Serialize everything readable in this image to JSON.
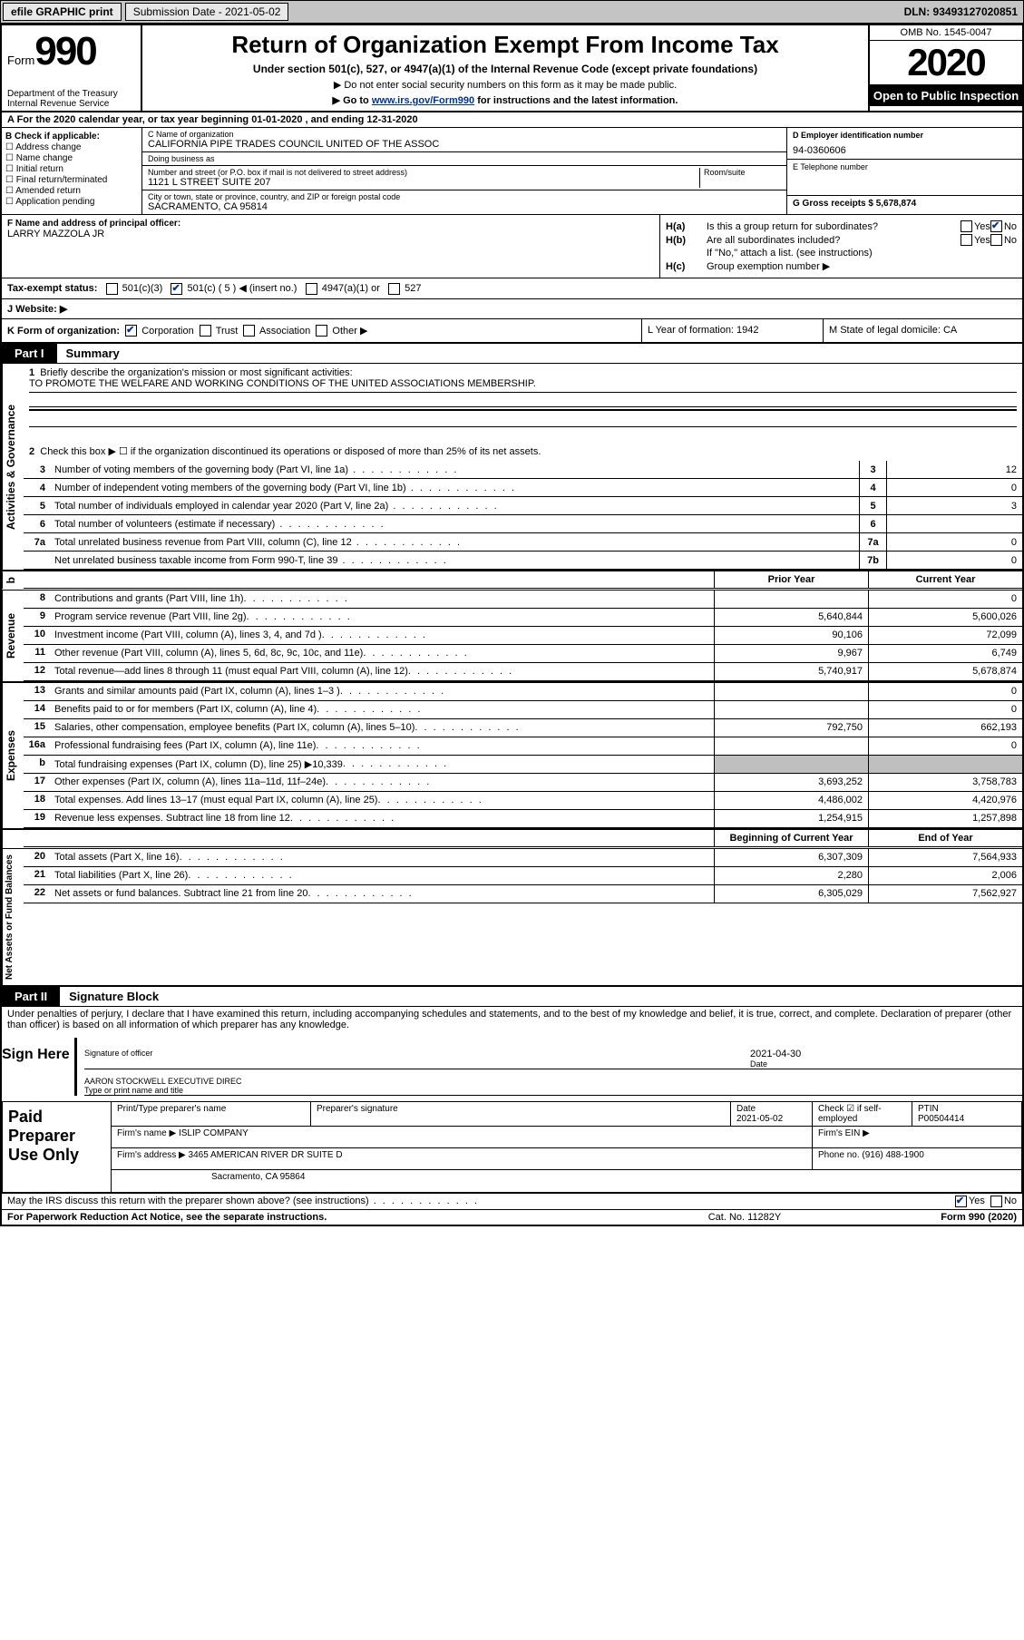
{
  "top_bar": {
    "efile_label": "efile GRAPHIC print",
    "submission_label": "Submission Date - 2021-05-02",
    "dln": "DLN: 93493127020851"
  },
  "header": {
    "form_label": "Form",
    "form_number": "990",
    "dept": "Department of the Treasury",
    "irs": "Internal Revenue Service",
    "title": "Return of Organization Exempt From Income Tax",
    "subtitle": "Under section 501(c), 527, or 4947(a)(1) of the Internal Revenue Code (except private foundations)",
    "note1": "▶ Do not enter social security numbers on this form as it may be made public.",
    "note2_pre": "▶ Go to ",
    "note2_link": "www.irs.gov/Form990",
    "note2_post": " for instructions and the latest information.",
    "omb": "OMB No. 1545-0047",
    "year": "2020",
    "open_pub": "Open to Public Inspection"
  },
  "row_a": "A For the 2020 calendar year, or tax year beginning 01-01-2020    , and ending 12-31-2020",
  "col_b": {
    "title": "B Check if applicable:",
    "opts": [
      "Address change",
      "Name change",
      "Initial return",
      "Final return/terminated",
      "Amended return",
      "Application pending"
    ]
  },
  "col_c": {
    "name_lbl": "C Name of organization",
    "name": "CALIFORNIA PIPE TRADES COUNCIL UNITED OF THE ASSOC",
    "dba_lbl": "Doing business as",
    "dba": "",
    "street_lbl": "Number and street (or P.O. box if mail is not delivered to street address)",
    "street": "1121 L STREET SUITE 207",
    "room_lbl": "Room/suite",
    "city_lbl": "City or town, state or province, country, and ZIP or foreign postal code",
    "city": "SACRAMENTO, CA  95814"
  },
  "col_d": {
    "ein_lbl": "D Employer identification number",
    "ein": "94-0360606",
    "tel_lbl": "E Telephone number",
    "tel": "",
    "gross_lbl": "G Gross receipts $ 5,678,874"
  },
  "officer": {
    "lbl": "F  Name and address of principal officer:",
    "name": "LARRY MAZZOLA JR"
  },
  "h_section": {
    "ha": "Is this a group return for subordinates?",
    "hb": "Are all subordinates included?",
    "hb_note": "If \"No,\" attach a list. (see instructions)",
    "hc": "Group exemption number ▶"
  },
  "row_i": {
    "tax_status": "Tax-exempt status:",
    "opts": [
      "501(c)(3)",
      "501(c) ( 5 ) ◀ (insert no.)",
      "4947(a)(1) or",
      "527"
    ],
    "website_lbl": "J   Website: ▶"
  },
  "row_k": {
    "k": "K Form of organization:",
    "opts": [
      "Corporation",
      "Trust",
      "Association",
      "Other ▶"
    ],
    "l": "L Year of formation: 1942",
    "m": "M State of legal domicile: CA"
  },
  "part1": {
    "tab": "Part I",
    "title": "Summary"
  },
  "governance": {
    "vlabel": "Activities & Governance",
    "l1": "Briefly describe the organization's mission or most significant activities:",
    "l1_val": "TO PROMOTE THE WELFARE AND WORKING CONDITIONS OF THE UNITED ASSOCIATIONS MEMBERSHIP.",
    "l2": "Check this box ▶ ☐  if the organization discontinued its operations or disposed of more than 25% of its net assets.",
    "lines": [
      {
        "n": "3",
        "d": "Number of voting members of the governing body (Part VI, line 1a)",
        "bn": "3",
        "v": "12"
      },
      {
        "n": "4",
        "d": "Number of independent voting members of the governing body (Part VI, line 1b)",
        "bn": "4",
        "v": "0"
      },
      {
        "n": "5",
        "d": "Total number of individuals employed in calendar year 2020 (Part V, line 2a)",
        "bn": "5",
        "v": "3"
      },
      {
        "n": "6",
        "d": "Total number of volunteers (estimate if necessary)",
        "bn": "6",
        "v": ""
      },
      {
        "n": "7a",
        "d": "Total unrelated business revenue from Part VIII, column (C), line 12",
        "bn": "7a",
        "v": "0"
      },
      {
        "n": "",
        "d": "Net unrelated business taxable income from Form 990-T, line 39",
        "bn": "7b",
        "v": "0"
      }
    ]
  },
  "col_headers": {
    "prior": "Prior Year",
    "current": "Current Year"
  },
  "revenue": {
    "vlabel": "Revenue",
    "lines": [
      {
        "n": "8",
        "d": "Contributions and grants (Part VIII, line 1h)",
        "p": "",
        "c": "0"
      },
      {
        "n": "9",
        "d": "Program service revenue (Part VIII, line 2g)",
        "p": "5,640,844",
        "c": "5,600,026"
      },
      {
        "n": "10",
        "d": "Investment income (Part VIII, column (A), lines 3, 4, and 7d )",
        "p": "90,106",
        "c": "72,099"
      },
      {
        "n": "11",
        "d": "Other revenue (Part VIII, column (A), lines 5, 6d, 8c, 9c, 10c, and 11e)",
        "p": "9,967",
        "c": "6,749"
      },
      {
        "n": "12",
        "d": "Total revenue—add lines 8 through 11 (must equal Part VIII, column (A), line 12)",
        "p": "5,740,917",
        "c": "5,678,874"
      }
    ]
  },
  "expenses": {
    "vlabel": "Expenses",
    "lines": [
      {
        "n": "13",
        "d": "Grants and similar amounts paid (Part IX, column (A), lines 1–3 )",
        "p": "",
        "c": "0"
      },
      {
        "n": "14",
        "d": "Benefits paid to or for members (Part IX, column (A), line 4)",
        "p": "",
        "c": "0"
      },
      {
        "n": "15",
        "d": "Salaries, other compensation, employee benefits (Part IX, column (A), lines 5–10)",
        "p": "792,750",
        "c": "662,193"
      },
      {
        "n": "16a",
        "d": "Professional fundraising fees (Part IX, column (A), line 11e)",
        "p": "",
        "c": "0"
      },
      {
        "n": "b",
        "d": "Total fundraising expenses (Part IX, column (D), line 25) ▶10,339",
        "p": "gray",
        "c": "gray"
      },
      {
        "n": "17",
        "d": "Other expenses (Part IX, column (A), lines 11a–11d, 11f–24e)",
        "p": "3,693,252",
        "c": "3,758,783"
      },
      {
        "n": "18",
        "d": "Total expenses. Add lines 13–17 (must equal Part IX, column (A), line 25)",
        "p": "4,486,002",
        "c": "4,420,976"
      },
      {
        "n": "19",
        "d": "Revenue less expenses. Subtract line 18 from line 12",
        "p": "1,254,915",
        "c": "1,257,898"
      }
    ]
  },
  "net_headers": {
    "begin": "Beginning of Current Year",
    "end": "End of Year"
  },
  "net": {
    "vlabel": "Net Assets or Fund Balances",
    "lines": [
      {
        "n": "20",
        "d": "Total assets (Part X, line 16)",
        "p": "6,307,309",
        "c": "7,564,933"
      },
      {
        "n": "21",
        "d": "Total liabilities (Part X, line 26)",
        "p": "2,280",
        "c": "2,006"
      },
      {
        "n": "22",
        "d": "Net assets or fund balances. Subtract line 21 from line 20",
        "p": "6,305,029",
        "c": "7,562,927"
      }
    ]
  },
  "part2": {
    "tab": "Part II",
    "title": "Signature Block"
  },
  "sig": {
    "declaration": "Under penalties of perjury, I declare that I have examined this return, including accompanying schedules and statements, and to the best of my knowledge and belief, it is true, correct, and complete. Declaration of preparer (other than officer) is based on all information of which preparer has any knowledge.",
    "sign_here": "Sign Here",
    "sig_officer": "Signature of officer",
    "date": "2021-04-30",
    "date_lbl": "Date",
    "name": "AARON STOCKWELL  EXECUTIVE DIREC",
    "name_lbl": "Type or print name and title"
  },
  "preparer": {
    "label": "Paid Preparer Use Only",
    "h1": "Print/Type preparer's name",
    "h2": "Preparer's signature",
    "h3": "Date",
    "h3v": "2021-05-02",
    "h4": "Check ☑ if self-employed",
    "h5": "PTIN",
    "h5v": "P00504414",
    "firm_lbl": "Firm's name    ▶",
    "firm": "ISLIP COMPANY",
    "ein_lbl": "Firm's EIN ▶",
    "addr_lbl": "Firm's address ▶",
    "addr1": "3465 AMERICAN RIVER DR SUITE D",
    "addr2": "Sacramento, CA  95864",
    "phone_lbl": "Phone no. (916) 488-1900"
  },
  "footer": {
    "discuss": "May the IRS discuss this return with the preparer shown above? (see instructions)",
    "paperwork": "For Paperwork Reduction Act Notice, see the separate instructions.",
    "cat": "Cat. No. 11282Y",
    "form": "Form 990 (2020)"
  },
  "colors": {
    "link": "#003399",
    "black": "#000",
    "gray": "#bfbfbf",
    "top_bg": "#c4c4c4"
  }
}
